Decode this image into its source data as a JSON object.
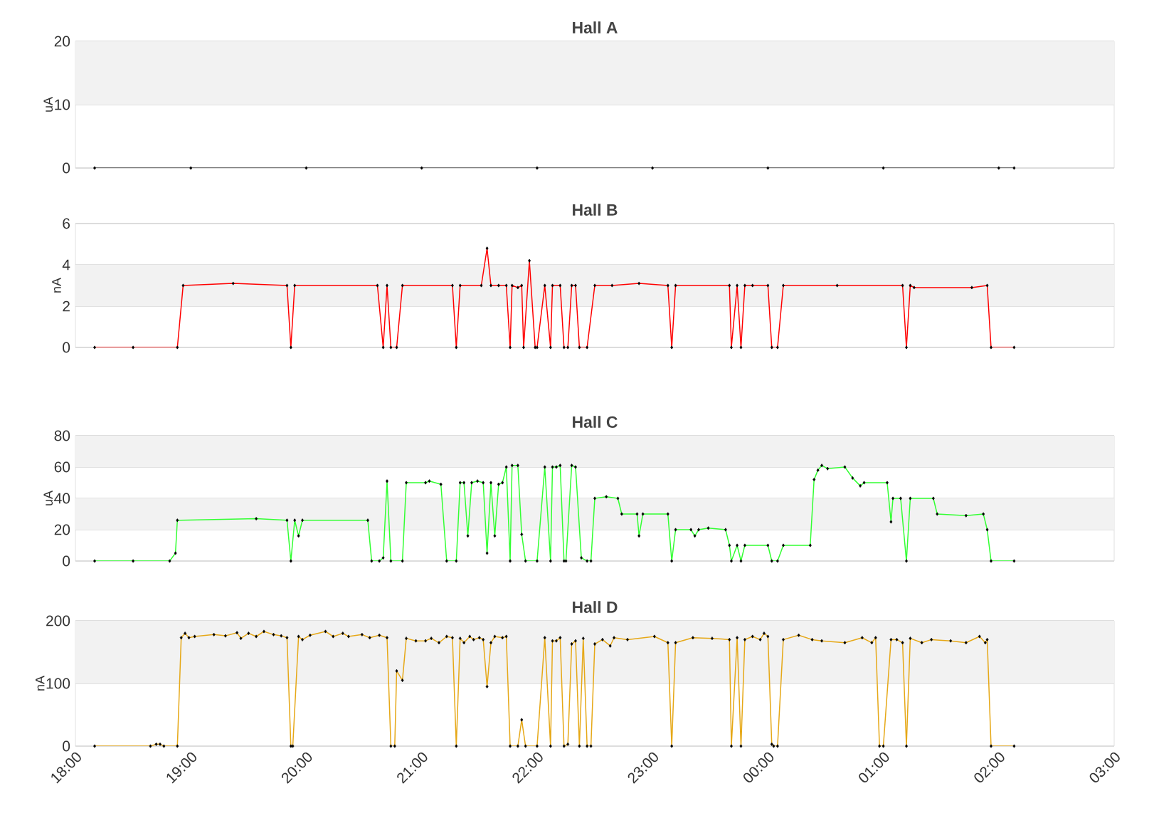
{
  "chart_data": [
    {
      "type": "line",
      "title": "Hall A",
      "ylabel": "uA",
      "xlim": [
        "2000-01-01T18:00",
        "2000-01-02T03:00"
      ],
      "ylim": [
        0,
        20
      ],
      "yticks": [
        0,
        10,
        20
      ],
      "grid": "y",
      "tick_labels": "y",
      "marker": "diamond",
      "color": "#4d4d4d",
      "bands": [
        {
          "axis": "y",
          "from": 10,
          "to": 20,
          "color": "#f2f2f2"
        }
      ],
      "x": [
        "2000-01-01T18:10",
        "2000-01-01T19:00",
        "2000-01-01T20:00",
        "2000-01-01T21:00",
        "2000-01-01T22:00",
        "2000-01-01T23:00",
        "2000-01-02T00:00",
        "2000-01-02T01:00",
        "2000-01-02T02:00",
        "2000-01-02T02:08"
      ],
      "values": [
        0,
        0,
        0,
        0,
        0,
        0,
        0,
        0,
        0,
        0
      ]
    },
    {
      "type": "line",
      "title": "Hall B",
      "ylabel": "nA",
      "xlim": [
        "2000-01-01T18:00",
        "2000-01-02T03:00"
      ],
      "ylim": [
        0,
        6
      ],
      "yticks": [
        0,
        2,
        4,
        6
      ],
      "grid": "y",
      "tick_labels": "y",
      "marker": "diamond",
      "color": "#ff0000",
      "bands": [
        {
          "axis": "y",
          "from": 2,
          "to": 4,
          "color": "#f2f2f2"
        }
      ],
      "x": [
        "2000-01-01T18:10",
        "2000-01-01T18:30",
        "2000-01-01T18:53",
        "2000-01-01T18:56",
        "2000-01-01T19:22",
        "2000-01-01T19:50",
        "2000-01-01T19:52",
        "2000-01-01T19:54",
        "2000-01-01T20:37",
        "2000-01-01T20:40",
        "2000-01-01T20:42",
        "2000-01-01T20:44",
        "2000-01-01T20:47",
        "2000-01-01T20:50",
        "2000-01-01T21:16",
        "2000-01-01T21:18",
        "2000-01-01T21:20",
        "2000-01-01T21:31",
        "2000-01-01T21:34",
        "2000-01-01T21:36",
        "2000-01-01T21:40",
        "2000-01-01T21:44",
        "2000-01-01T21:46",
        "2000-01-01T21:47",
        "2000-01-01T21:50",
        "2000-01-01T21:52",
        "2000-01-01T21:53",
        "2000-01-01T21:56",
        "2000-01-01T21:59",
        "2000-01-01T22:00",
        "2000-01-01T22:04",
        "2000-01-01T22:07",
        "2000-01-01T22:08",
        "2000-01-01T22:12",
        "2000-01-01T22:14",
        "2000-01-01T22:16",
        "2000-01-01T22:18",
        "2000-01-01T22:20",
        "2000-01-01T22:22",
        "2000-01-01T22:26",
        "2000-01-01T22:30",
        "2000-01-01T22:39",
        "2000-01-01T22:53",
        "2000-01-01T23:08",
        "2000-01-01T23:10",
        "2000-01-01T23:12",
        "2000-01-01T23:40",
        "2000-01-01T23:41",
        "2000-01-01T23:44",
        "2000-01-01T23:46",
        "2000-01-01T23:48",
        "2000-01-01T23:52",
        "2000-01-02T00:00",
        "2000-01-02T00:02",
        "2000-01-02T00:05",
        "2000-01-02T00:08",
        "2000-01-02T00:36",
        "2000-01-02T01:10",
        "2000-01-02T01:12",
        "2000-01-02T01:14",
        "2000-01-02T01:16",
        "2000-01-02T01:46",
        "2000-01-02T01:54",
        "2000-01-02T01:56",
        "2000-01-02T02:08"
      ],
      "values": [
        0,
        0,
        0,
        3.0,
        3.1,
        3.0,
        0,
        3.0,
        3.0,
        0,
        3.0,
        0,
        0,
        3.0,
        3.0,
        0,
        3.0,
        3.0,
        4.8,
        3.0,
        3.0,
        3.0,
        0,
        3.0,
        2.9,
        3.0,
        0,
        4.2,
        0,
        0,
        3.0,
        0,
        3.0,
        3.0,
        0,
        0,
        3.0,
        3.0,
        0,
        0,
        3.0,
        3.0,
        3.1,
        3.0,
        0,
        3.0,
        3.0,
        0,
        3.0,
        0,
        3.0,
        3.0,
        3.0,
        0,
        0,
        3.0,
        3.0,
        3.0,
        0,
        3.0,
        2.9,
        2.9,
        3.0,
        0,
        0
      ]
    },
    {
      "type": "line",
      "title": "Hall C",
      "ylabel": "uA",
      "xlim": [
        "2000-01-01T18:00",
        "2000-01-02T03:00"
      ],
      "ylim": [
        0,
        80
      ],
      "yticks": [
        0,
        20,
        40,
        60,
        80
      ],
      "grid": "y",
      "tick_labels": "y",
      "marker": "diamond",
      "color": "#33ff33",
      "bands": [
        {
          "axis": "y",
          "from": 20,
          "to": 40,
          "color": "#f2f2f2"
        },
        {
          "axis": "y",
          "from": 60,
          "to": 80,
          "color": "#f2f2f2"
        }
      ],
      "x": [
        "2000-01-01T18:10",
        "2000-01-01T18:30",
        "2000-01-01T18:49",
        "2000-01-01T18:52",
        "2000-01-01T18:53",
        "2000-01-01T19:34",
        "2000-01-01T19:50",
        "2000-01-01T19:52",
        "2000-01-01T19:54",
        "2000-01-01T19:56",
        "2000-01-01T19:58",
        "2000-01-01T20:32",
        "2000-01-01T20:34",
        "2000-01-01T20:38",
        "2000-01-01T20:40",
        "2000-01-01T20:42",
        "2000-01-01T20:44",
        "2000-01-01T20:50",
        "2000-01-01T20:52",
        "2000-01-01T21:02",
        "2000-01-01T21:04",
        "2000-01-01T21:10",
        "2000-01-01T21:13",
        "2000-01-01T21:18",
        "2000-01-01T21:20",
        "2000-01-01T21:22",
        "2000-01-01T21:24",
        "2000-01-01T21:26",
        "2000-01-01T21:29",
        "2000-01-01T21:32",
        "2000-01-01T21:34",
        "2000-01-01T21:36",
        "2000-01-01T21:38",
        "2000-01-01T21:40",
        "2000-01-01T21:42",
        "2000-01-01T21:44",
        "2000-01-01T21:46",
        "2000-01-01T21:47",
        "2000-01-01T21:50",
        "2000-01-01T21:52",
        "2000-01-01T21:54",
        "2000-01-01T22:00",
        "2000-01-01T22:04",
        "2000-01-01T22:07",
        "2000-01-01T22:08",
        "2000-01-01T22:10",
        "2000-01-01T22:12",
        "2000-01-01T22:14",
        "2000-01-01T22:15",
        "2000-01-01T22:18",
        "2000-01-01T22:20",
        "2000-01-01T22:23",
        "2000-01-01T22:26",
        "2000-01-01T22:28",
        "2000-01-01T22:30",
        "2000-01-01T22:36",
        "2000-01-01T22:42",
        "2000-01-01T22:44",
        "2000-01-01T22:52",
        "2000-01-01T22:53",
        "2000-01-01T22:55",
        "2000-01-01T23:08",
        "2000-01-01T23:10",
        "2000-01-01T23:12",
        "2000-01-01T23:20",
        "2000-01-01T23:22",
        "2000-01-01T23:24",
        "2000-01-01T23:29",
        "2000-01-01T23:38",
        "2000-01-01T23:40",
        "2000-01-01T23:41",
        "2000-01-01T23:44",
        "2000-01-01T23:46",
        "2000-01-01T23:48",
        "2000-01-02T00:00",
        "2000-01-02T00:02",
        "2000-01-02T00:05",
        "2000-01-02T00:08",
        "2000-01-02T00:22",
        "2000-01-02T00:24",
        "2000-01-02T00:26",
        "2000-01-02T00:28",
        "2000-01-02T00:31",
        "2000-01-02T00:40",
        "2000-01-02T00:44",
        "2000-01-02T00:48",
        "2000-01-02T00:50",
        "2000-01-02T01:02",
        "2000-01-02T01:04",
        "2000-01-02T01:05",
        "2000-01-02T01:09",
        "2000-01-02T01:12",
        "2000-01-02T01:14",
        "2000-01-02T01:26",
        "2000-01-02T01:28",
        "2000-01-02T01:43",
        "2000-01-02T01:52",
        "2000-01-02T01:54",
        "2000-01-02T01:56",
        "2000-01-02T02:08"
      ],
      "values": [
        0,
        0,
        0,
        5,
        26,
        27,
        26,
        0,
        26,
        16,
        26,
        26,
        0,
        0,
        2,
        51,
        0,
        0,
        50,
        50,
        51,
        49,
        0,
        0,
        50,
        50,
        16,
        50,
        51,
        50,
        5,
        50,
        16,
        49,
        50,
        60,
        0,
        61,
        61,
        17,
        0,
        0,
        60,
        0,
        60,
        60,
        61,
        0,
        0,
        61,
        60,
        2,
        0,
        0,
        40,
        41,
        40,
        30,
        30,
        16,
        30,
        30,
        0,
        20,
        20,
        16,
        20,
        21,
        20,
        10,
        0,
        10,
        0,
        10,
        10,
        0,
        0,
        10,
        10,
        52,
        58,
        61,
        59,
        60,
        53,
        48,
        50,
        50,
        25,
        40,
        40,
        0,
        40,
        40,
        30,
        29,
        30,
        20,
        0,
        0
      ]
    },
    {
      "type": "line",
      "title": "Hall D",
      "ylabel": "nA",
      "xlim": [
        "2000-01-01T18:00",
        "2000-01-02T03:00"
      ],
      "ylim": [
        0,
        200
      ],
      "yticks": [
        0,
        100,
        200
      ],
      "grid": "y",
      "marker": "diamond",
      "color": "#e6a817",
      "xticks": [
        {
          "value": "2000-01-01T18:00",
          "label": "18:00"
        },
        {
          "value": "2000-01-01T19:00",
          "label": "19:00"
        },
        {
          "value": "2000-01-01T20:00",
          "label": "20:00"
        },
        {
          "value": "2000-01-01T21:00",
          "label": "21:00"
        },
        {
          "value": "2000-01-01T22:00",
          "label": "22:00"
        },
        {
          "value": "2000-01-01T23:00",
          "label": "23:00"
        },
        {
          "value": "2000-01-02T00:00",
          "label": "00:00"
        },
        {
          "value": "2000-01-02T01:00",
          "label": "01:00"
        },
        {
          "value": "2000-01-02T02:00",
          "label": "02:00"
        },
        {
          "value": "2000-01-02T03:00",
          "label": "03:00"
        }
      ],
      "bands": [
        {
          "axis": "y",
          "from": 100,
          "to": 200,
          "color": "#f2f2f2"
        }
      ],
      "x": [
        "2000-01-01T18:10",
        "2000-01-01T18:39",
        "2000-01-01T18:42",
        "2000-01-01T18:44",
        "2000-01-01T18:46",
        "2000-01-01T18:53",
        "2000-01-01T18:55",
        "2000-01-01T18:57",
        "2000-01-01T18:59",
        "2000-01-01T19:02",
        "2000-01-01T19:12",
        "2000-01-01T19:18",
        "2000-01-01T19:24",
        "2000-01-01T19:26",
        "2000-01-01T19:30",
        "2000-01-01T19:34",
        "2000-01-01T19:38",
        "2000-01-01T19:43",
        "2000-01-01T19:47",
        "2000-01-01T19:50",
        "2000-01-01T19:52",
        "2000-01-01T19:53",
        "2000-01-01T19:56",
        "2000-01-01T19:58",
        "2000-01-01T20:02",
        "2000-01-01T20:10",
        "2000-01-01T20:14",
        "2000-01-01T20:19",
        "2000-01-01T20:22",
        "2000-01-01T20:29",
        "2000-01-01T20:33",
        "2000-01-01T20:38",
        "2000-01-01T20:42",
        "2000-01-01T20:44",
        "2000-01-01T20:46",
        "2000-01-01T20:47",
        "2000-01-01T20:50",
        "2000-01-01T20:52",
        "2000-01-01T20:57",
        "2000-01-01T21:02",
        "2000-01-01T21:05",
        "2000-01-01T21:09",
        "2000-01-01T21:13",
        "2000-01-01T21:16",
        "2000-01-01T21:18",
        "2000-01-01T21:20",
        "2000-01-01T21:22",
        "2000-01-01T21:25",
        "2000-01-01T21:27",
        "2000-01-01T21:30",
        "2000-01-01T21:32",
        "2000-01-01T21:34",
        "2000-01-01T21:36",
        "2000-01-01T21:38",
        "2000-01-01T21:42",
        "2000-01-01T21:44",
        "2000-01-01T21:46",
        "2000-01-01T21:50",
        "2000-01-01T21:52",
        "2000-01-01T21:54",
        "2000-01-01T22:00",
        "2000-01-01T22:04",
        "2000-01-01T22:07",
        "2000-01-01T22:08",
        "2000-01-01T22:10",
        "2000-01-01T22:12",
        "2000-01-01T22:14",
        "2000-01-01T22:16",
        "2000-01-01T22:18",
        "2000-01-01T22:20",
        "2000-01-01T22:22",
        "2000-01-01T22:24",
        "2000-01-01T22:26",
        "2000-01-01T22:28",
        "2000-01-01T22:30",
        "2000-01-01T22:34",
        "2000-01-01T22:38",
        "2000-01-01T22:40",
        "2000-01-01T22:47",
        "2000-01-01T23:01",
        "2000-01-01T23:08",
        "2000-01-01T23:10",
        "2000-01-01T23:12",
        "2000-01-01T23:21",
        "2000-01-01T23:31",
        "2000-01-01T23:40",
        "2000-01-01T23:41",
        "2000-01-01T23:44",
        "2000-01-01T23:46",
        "2000-01-01T23:48",
        "2000-01-01T23:52",
        "2000-01-01T23:56",
        "2000-01-01T23:58",
        "2000-01-02T00:00",
        "2000-01-02T00:02",
        "2000-01-02T00:03",
        "2000-01-02T00:05",
        "2000-01-02T00:08",
        "2000-01-02T00:16",
        "2000-01-02T00:23",
        "2000-01-02T00:28",
        "2000-01-02T00:40",
        "2000-01-02T00:49",
        "2000-01-02T00:54",
        "2000-01-02T00:56",
        "2000-01-02T00:58",
        "2000-01-02T01:00",
        "2000-01-02T01:04",
        "2000-01-02T01:07",
        "2000-01-02T01:10",
        "2000-01-02T01:12",
        "2000-01-02T01:14",
        "2000-01-02T01:20",
        "2000-01-02T01:25",
        "2000-01-02T01:35",
        "2000-01-02T01:43",
        "2000-01-02T01:50",
        "2000-01-02T01:53",
        "2000-01-02T01:54",
        "2000-01-02T01:56",
        "2000-01-02T02:08"
      ],
      "values": [
        0,
        0,
        3,
        3,
        0,
        0,
        173,
        180,
        173,
        175,
        178,
        176,
        181,
        172,
        180,
        175,
        183,
        178,
        176,
        173,
        0,
        0,
        175,
        170,
        177,
        183,
        175,
        180,
        175,
        178,
        173,
        177,
        173,
        0,
        0,
        120,
        105,
        172,
        168,
        168,
        172,
        165,
        175,
        173,
        0,
        172,
        165,
        175,
        170,
        173,
        170,
        95,
        165,
        175,
        173,
        175,
        0,
        0,
        42,
        0,
        0,
        173,
        0,
        168,
        168,
        173,
        0,
        3,
        163,
        168,
        0,
        172,
        0,
        0,
        163,
        170,
        160,
        173,
        170,
        175,
        165,
        0,
        165,
        173,
        172,
        170,
        0,
        173,
        0,
        170,
        175,
        170,
        180,
        175,
        3,
        0,
        0,
        170,
        177,
        170,
        168,
        165,
        173,
        165,
        173,
        0,
        0,
        170,
        170,
        165,
        0,
        172,
        165,
        170,
        168,
        165,
        175,
        165,
        170,
        0,
        0
      ]
    }
  ]
}
